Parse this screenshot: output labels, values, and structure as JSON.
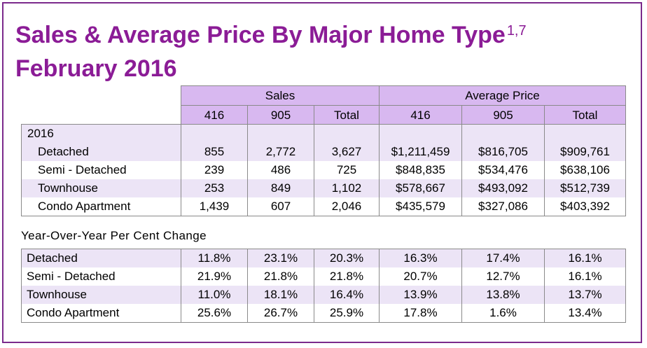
{
  "title": {
    "line1": "Sales & Average Price By Major Home Type",
    "superscript": "1,7",
    "line2": "February 2016"
  },
  "header": {
    "group1": "Sales",
    "group2": "Average Price",
    "columns": [
      "416",
      "905",
      "Total",
      "416",
      "905",
      "Total"
    ]
  },
  "section1": {
    "year_label": "2016",
    "rows": [
      {
        "label": "Detached",
        "values": [
          "855",
          "2,772",
          "3,627",
          "$1,211,459",
          "$816,705",
          "$909,761"
        ]
      },
      {
        "label": "Semi - Detached",
        "values": [
          "239",
          "486",
          "725",
          "$848,835",
          "$534,476",
          "$638,106"
        ]
      },
      {
        "label": "Townhouse",
        "values": [
          "253",
          "849",
          "1,102",
          "$578,667",
          "$493,092",
          "$512,739"
        ]
      },
      {
        "label": "Condo Apartment",
        "values": [
          "1,439",
          "607",
          "2,046",
          "$435,579",
          "$327,086",
          "$403,392"
        ]
      }
    ]
  },
  "section2": {
    "label": "Year-Over-Year Per Cent Change",
    "rows": [
      {
        "label": "Detached",
        "values": [
          "11.8%",
          "23.1%",
          "20.3%",
          "16.3%",
          "17.4%",
          "16.1%"
        ]
      },
      {
        "label": "Semi - Detached",
        "values": [
          "21.9%",
          "21.8%",
          "21.8%",
          "20.7%",
          "12.7%",
          "16.1%"
        ]
      },
      {
        "label": "Townhouse",
        "values": [
          "11.0%",
          "18.1%",
          "16.4%",
          "13.9%",
          "13.8%",
          "13.7%"
        ]
      },
      {
        "label": "Condo Apartment",
        "values": [
          "25.6%",
          "26.7%",
          "25.9%",
          "17.8%",
          "1.6%",
          "13.4%"
        ]
      }
    ]
  },
  "colors": {
    "title": "#8b1c96",
    "frame": "#7b2a8c",
    "header_fill": "#d8b8f0",
    "row_shade": "#ece4f6"
  }
}
